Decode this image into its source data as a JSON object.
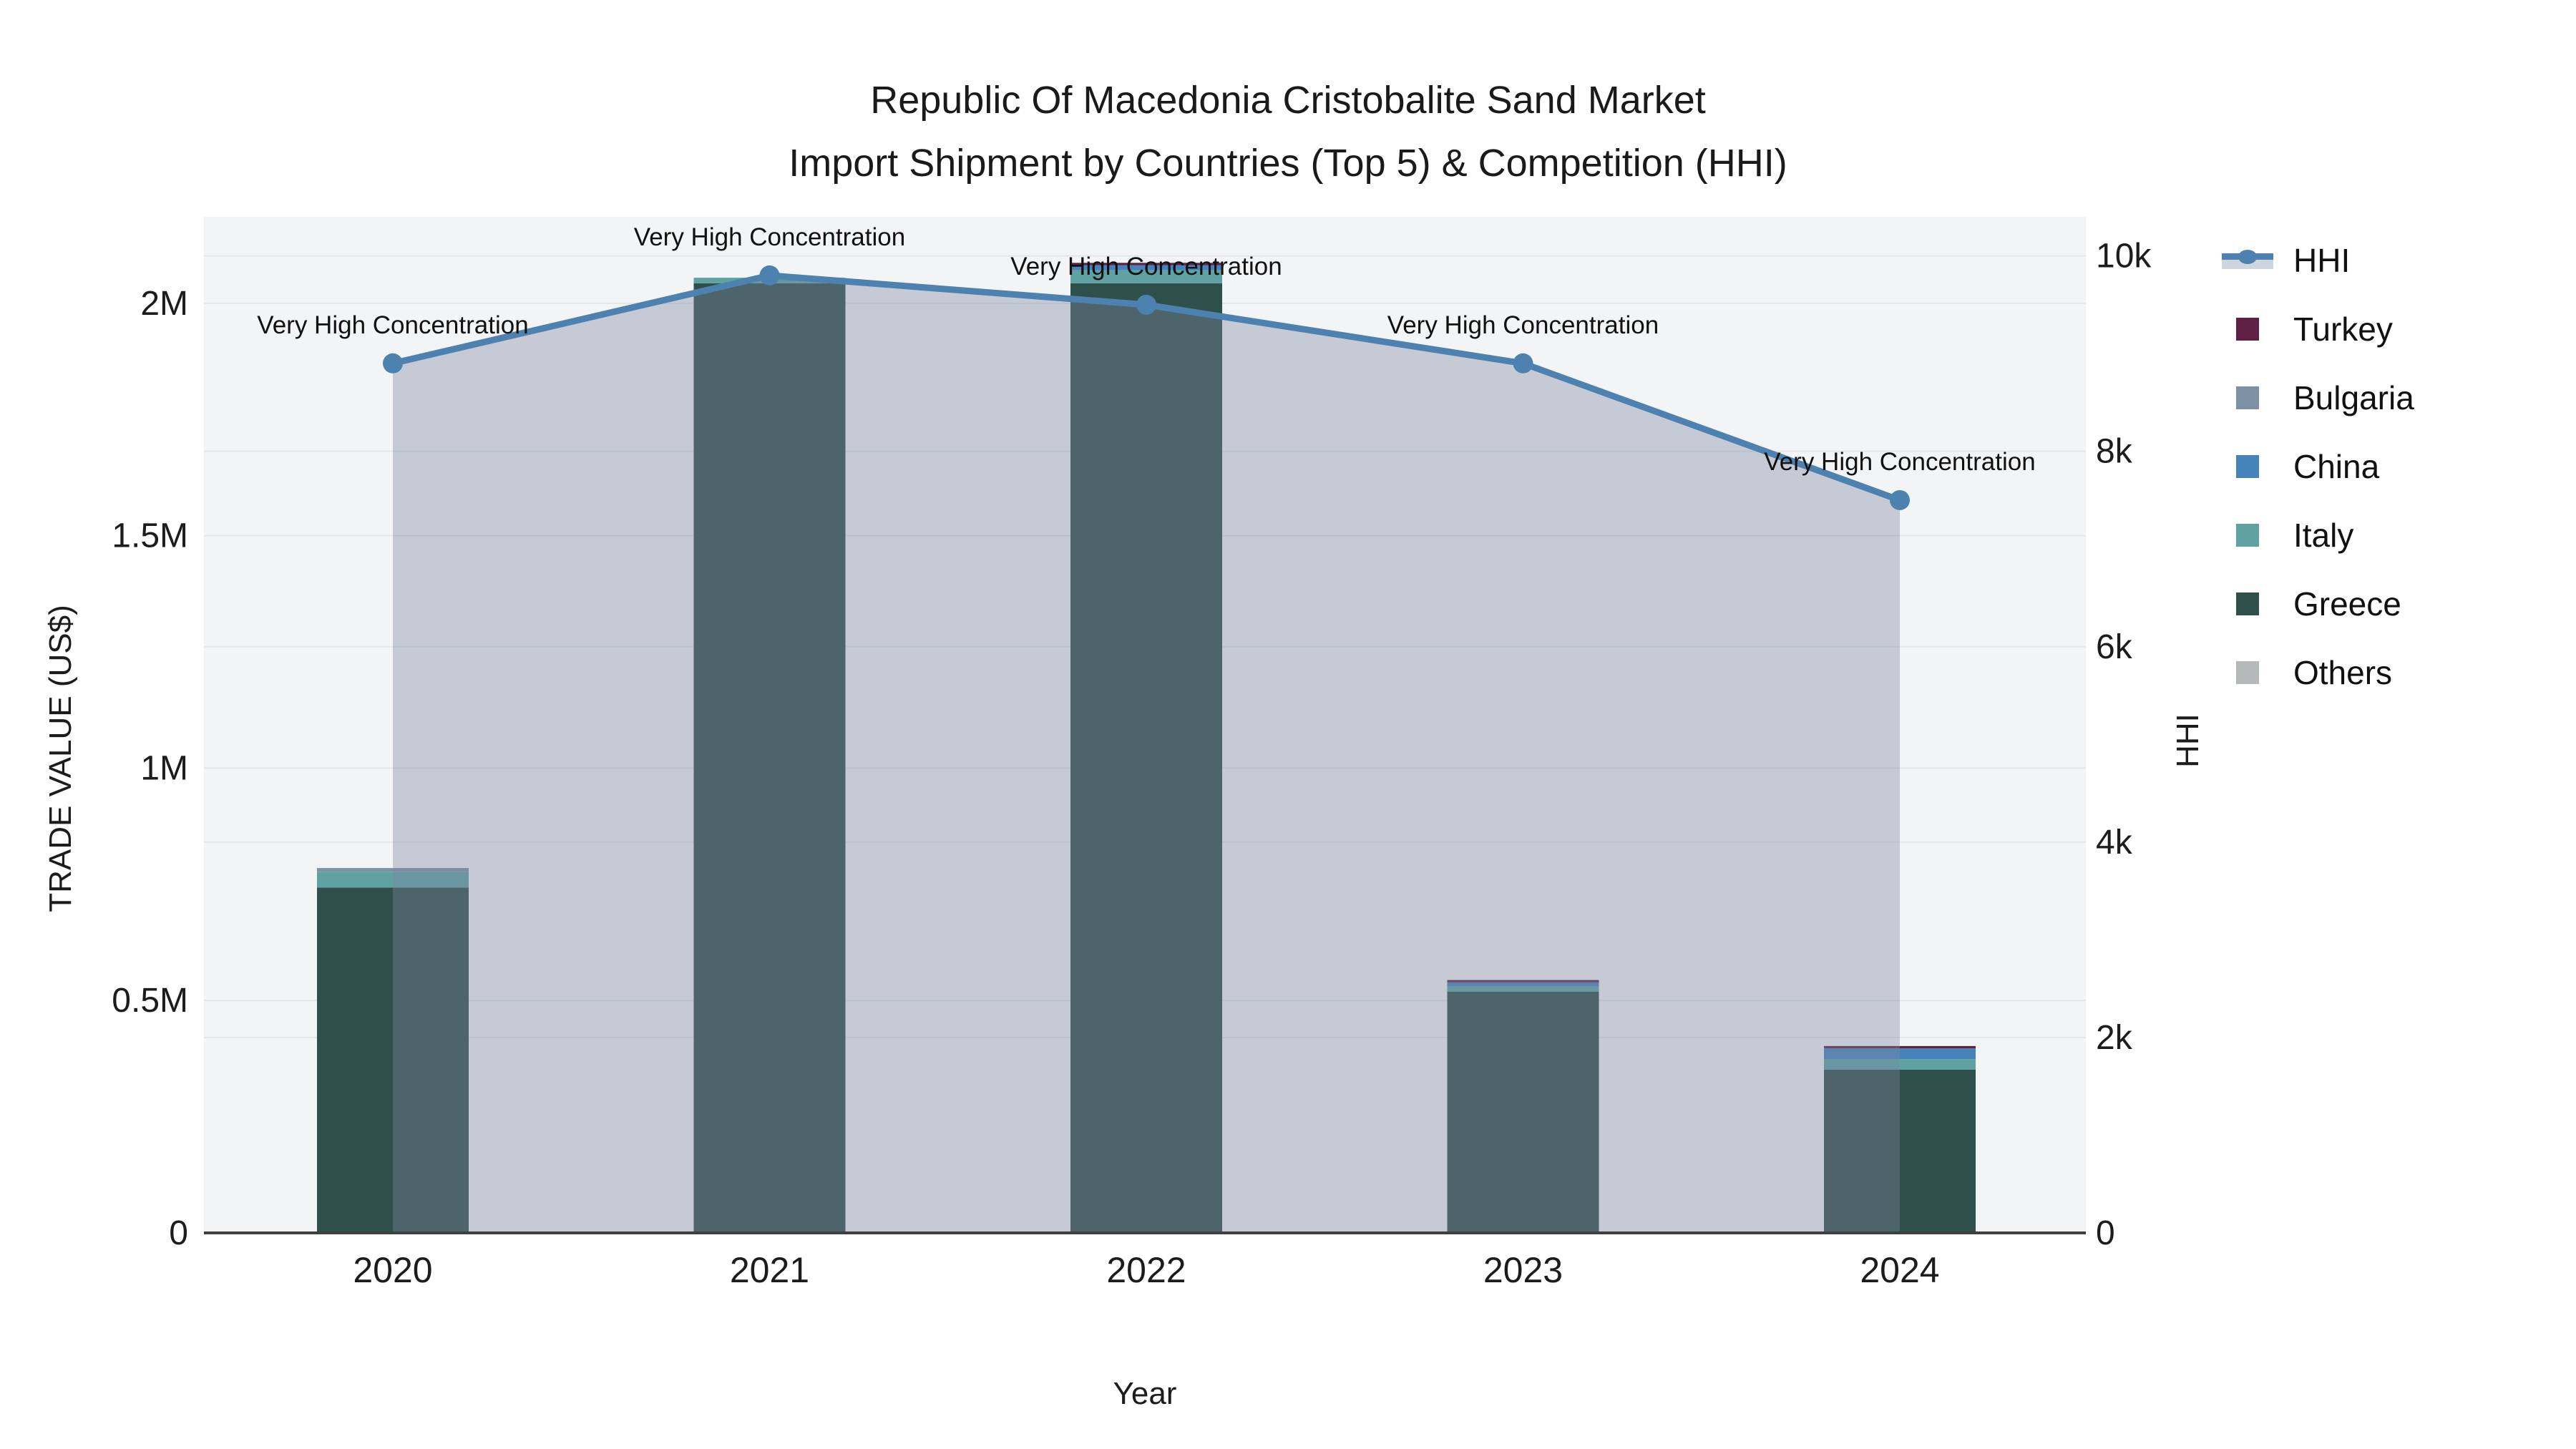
{
  "title": {
    "line1": "Republic Of Macedonia Cristobalite Sand Market",
    "line2": "Import Shipment by Countries (Top 5) & Competition (HHI)"
  },
  "axes": {
    "x": {
      "title": "Year",
      "ticks": [
        "2020",
        "2021",
        "2022",
        "2023",
        "2024"
      ]
    },
    "y_left": {
      "title": "TRADE VALUE (US$)",
      "ticks": [
        {
          "label": "0",
          "value": 0
        },
        {
          "label": "0.5M",
          "value": 500000
        },
        {
          "label": "1M",
          "value": 1000000
        },
        {
          "label": "1.5M",
          "value": 1500000
        },
        {
          "label": "2M",
          "value": 2000000
        }
      ],
      "range": [
        0,
        2186000
      ]
    },
    "y_right": {
      "title": "HHI",
      "ticks": [
        {
          "label": "0",
          "value": 0
        },
        {
          "label": "2k",
          "value": 2000
        },
        {
          "label": "4k",
          "value": 4000
        },
        {
          "label": "6k",
          "value": 6000
        },
        {
          "label": "8k",
          "value": 8000
        },
        {
          "label": "10k",
          "value": 10000
        }
      ],
      "range": [
        0,
        10400
      ]
    }
  },
  "legend": {
    "items": [
      {
        "label": "HHI",
        "kind": "line",
        "color": "#4d82b0",
        "band": "#cfd5dd"
      },
      {
        "label": "Turkey",
        "kind": "swatch",
        "color": "#5e2144"
      },
      {
        "label": "Bulgaria",
        "kind": "swatch",
        "color": "#7f91a5"
      },
      {
        "label": "China",
        "kind": "swatch",
        "color": "#4783bb"
      },
      {
        "label": "Italy",
        "kind": "swatch",
        "color": "#60a2a2"
      },
      {
        "label": "Greece",
        "kind": "swatch",
        "color": "#2f4f4a"
      },
      {
        "label": "Others",
        "kind": "swatch",
        "color": "#b5b8b8"
      }
    ]
  },
  "palette": {
    "plot_bg": "#f3f4f5",
    "grid": "#e4e6e8",
    "axis_line": "#3f3f3f",
    "text": "#1c1c1c",
    "annotation_text": "#111111",
    "hhi_line": "#4d82b0",
    "hhi_area": "rgba(124,133,160,0.38)"
  },
  "chart_data": {
    "type": "bar",
    "subtype": "stacked-bars-with-line",
    "categories": [
      "2020",
      "2021",
      "2022",
      "2023",
      "2024"
    ],
    "bar_value_unit": "US$ trade value",
    "series": [
      {
        "name": "Turkey",
        "color": "#5e2144",
        "values": [
          0,
          0,
          5000,
          5000,
          5000
        ]
      },
      {
        "name": "Bulgaria",
        "color": "#7f91a5",
        "values": [
          8000,
          0,
          0,
          0,
          0
        ]
      },
      {
        "name": "China",
        "color": "#4783bb",
        "values": [
          0,
          0,
          11000,
          9000,
          23000
        ]
      },
      {
        "name": "Italy",
        "color": "#60a2a2",
        "values": [
          34000,
          12000,
          28000,
          11000,
          23000
        ]
      },
      {
        "name": "Greece",
        "color": "#2f4f4a",
        "values": [
          743000,
          2043000,
          2043000,
          519000,
          351000
        ]
      },
      {
        "name": "Others",
        "color": "#b5b8b8",
        "values": [
          0,
          0,
          0,
          0,
          0
        ]
      }
    ],
    "stack_bottom_to_top": [
      "Greece",
      "Italy",
      "China",
      "Bulgaria",
      "Turkey",
      "Others"
    ],
    "line_series": {
      "name": "HHI",
      "color": "#4d82b0",
      "area_fill": "rgba(124,133,160,0.38)",
      "values": [
        8900,
        9800,
        9500,
        8900,
        7500
      ]
    },
    "annotations": [
      "Very High Concentration",
      "Very High Concentration",
      "Very High Concentration",
      "Very High Concentration",
      "Very High Concentration"
    ],
    "xlabel": "Year",
    "ylabel_left": "TRADE VALUE (US$)",
    "ylabel_right": "HHI",
    "ylim_left": [
      0,
      2186000
    ],
    "ylim_right": [
      0,
      10400
    ],
    "grid": true,
    "legend_position": "right"
  }
}
